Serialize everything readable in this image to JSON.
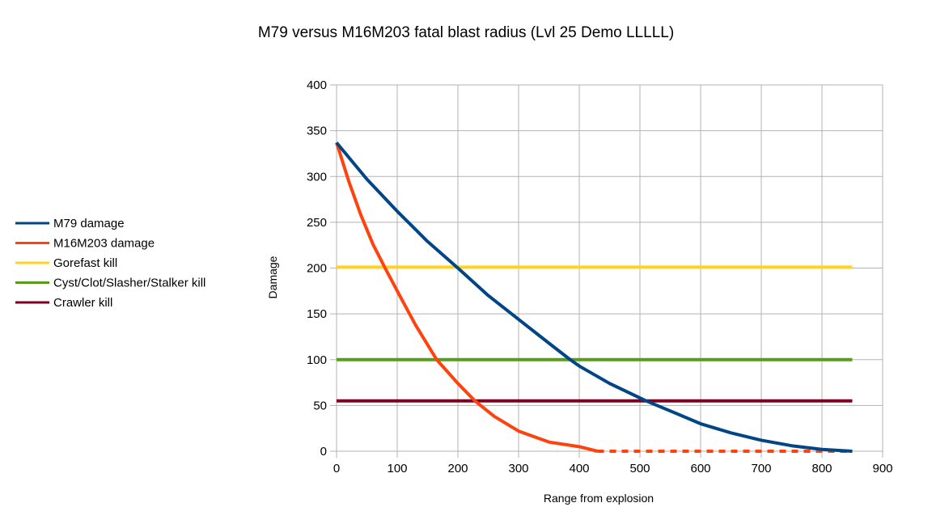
{
  "chart_data": {
    "type": "line",
    "title": "M79 versus M16M203 fatal blast radius (Lvl 25 Demo LLLLL)",
    "xlabel": "Range from explosion",
    "ylabel": "Damage",
    "xlim": [
      0,
      900
    ],
    "ylim": [
      0,
      400
    ],
    "xticks": [
      0,
      100,
      200,
      300,
      400,
      500,
      600,
      700,
      800,
      900
    ],
    "yticks": [
      0,
      50,
      100,
      150,
      200,
      250,
      300,
      350,
      400
    ],
    "grid": true,
    "legend_position": "left",
    "series": [
      {
        "name": "M79 damage",
        "color": "#004586",
        "style": "solid",
        "x": [
          0,
          50,
          100,
          150,
          200,
          250,
          300,
          350,
          385,
          400,
          450,
          510,
          550,
          600,
          650,
          700,
          750,
          800,
          850
        ],
        "y": [
          337,
          297,
          262,
          229,
          200,
          170,
          144,
          118,
          100,
          93,
          74,
          55,
          44,
          30,
          20,
          12,
          6,
          2,
          0
        ]
      },
      {
        "name": "M16M203 damage",
        "color": "#ff420e",
        "style": "solid-then-dashed",
        "x": [
          0,
          20,
          40,
          60,
          80,
          100,
          130,
          165,
          200,
          228,
          260,
          300,
          350,
          400,
          430,
          500,
          600,
          700,
          800,
          850
        ],
        "y": [
          337,
          295,
          258,
          226,
          200,
          175,
          138,
          100,
          74,
          55,
          38,
          22,
          10,
          5,
          0,
          0,
          0,
          0,
          0,
          0
        ]
      },
      {
        "name": "Gorefast kill",
        "color": "#ffd320",
        "style": "solid",
        "x": [
          0,
          850
        ],
        "y": [
          201,
          201
        ]
      },
      {
        "name": "Cyst/Clot/Slasher/Stalker kill",
        "color": "#579d1c",
        "style": "solid",
        "x": [
          0,
          850
        ],
        "y": [
          100,
          100
        ]
      },
      {
        "name": "Crawler kill",
        "color": "#7e0021",
        "style": "solid",
        "x": [
          0,
          850
        ],
        "y": [
          55,
          55
        ]
      }
    ],
    "m16_dash_start_x": 430
  }
}
